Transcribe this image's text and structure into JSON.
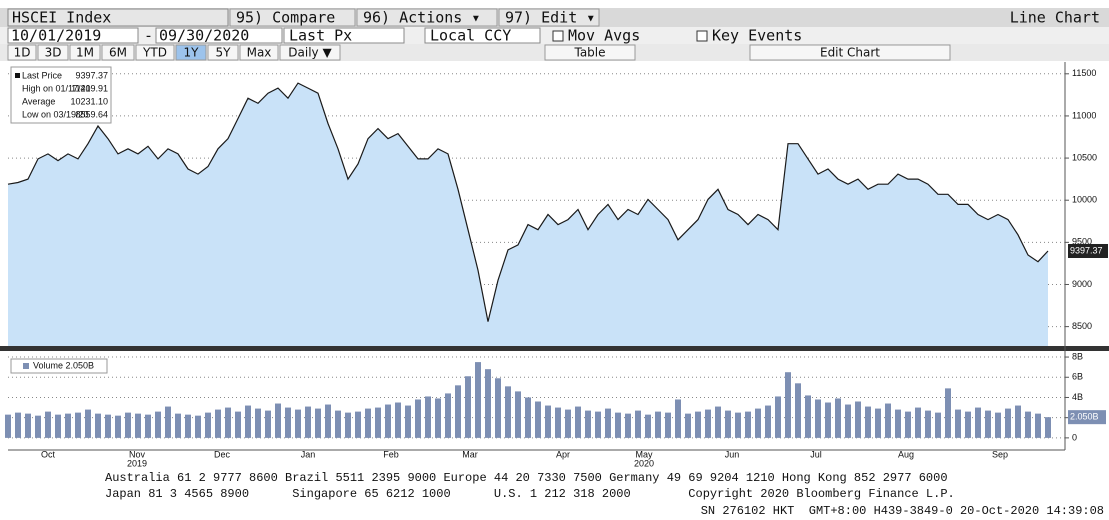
{
  "toolbar": {
    "row1": [
      "HSCEI Index",
      "95) Compare",
      "96) Actions ▾",
      "97) Edit ▾",
      "Line Chart"
    ],
    "row2": [
      "10/01/2019",
      "-",
      "09/30/2020",
      "Last Px",
      "Local CCY",
      "Mov Avgs",
      "Key Events"
    ],
    "row3": [
      "1D",
      "3D",
      "1M",
      "6M",
      "YTD",
      "1Y",
      "5Y",
      "Max",
      "Daily ▼",
      "Table",
      "Edit Chart"
    ]
  },
  "chart_data": [
    {
      "type": "area",
      "legend": [
        {
          "label": "Last Price",
          "value": "9397.37"
        },
        {
          "label": "High on 01/17/20",
          "value": "11419.91"
        },
        {
          "label": "Average",
          "value": "10231.10"
        },
        {
          "label": "Low on 03/19/20",
          "value": "8559.64"
        }
      ],
      "series": [
        {
          "name": "Last Price",
          "color": "#1a1a1a",
          "fill": "#c9e2f8",
          "values": [
            10190,
            10210,
            10250,
            10490,
            10550,
            10470,
            10550,
            10490,
            10670,
            10880,
            10730,
            10550,
            10610,
            10550,
            10640,
            10490,
            10610,
            10550,
            10370,
            10310,
            10400,
            10610,
            10730,
            10970,
            11210,
            11150,
            11270,
            11330,
            11210,
            11390,
            11330,
            11270,
            10910,
            10610,
            10250,
            10430,
            10730,
            10850,
            10730,
            10790,
            10640,
            10490,
            10490,
            10610,
            10550,
            10130,
            9650,
            9170,
            8560,
            9050,
            9410,
            9470,
            9710,
            9650,
            9830,
            9710,
            9770,
            9890,
            9650,
            9830,
            9950,
            9770,
            9890,
            9830,
            10010,
            9890,
            9770,
            9530,
            9650,
            9770,
            10010,
            10130,
            9890,
            9830,
            9710,
            9830,
            9770,
            9650,
            10670,
            10670,
            10490,
            10310,
            10370,
            10250,
            10190,
            10250,
            10130,
            10190,
            10190,
            10310,
            10250,
            10250,
            10190,
            10070,
            10070,
            9950,
            9950,
            9830,
            9770,
            9830,
            9770,
            9590,
            9350,
            9270,
            9397.37
          ]
        }
      ],
      "ylim": [
        8270,
        11640
      ],
      "yticks": [
        8500,
        9000,
        9500,
        10000,
        10500,
        11000,
        11500
      ],
      "grid": true
    },
    {
      "type": "bar",
      "legend_label": "Volume 2.050B",
      "last_label": "2.050B",
      "color": "#7d8fb3",
      "values": [
        2.3,
        2.5,
        2.4,
        2.2,
        2.6,
        2.3,
        2.4,
        2.5,
        2.8,
        2.4,
        2.3,
        2.2,
        2.5,
        2.4,
        2.3,
        2.6,
        3.1,
        2.4,
        2.3,
        2.2,
        2.5,
        2.8,
        3.0,
        2.6,
        3.2,
        2.9,
        2.7,
        3.4,
        3.0,
        2.8,
        3.1,
        2.9,
        3.3,
        2.7,
        2.5,
        2.6,
        2.9,
        3.0,
        3.3,
        3.5,
        3.2,
        3.8,
        4.1,
        3.9,
        4.4,
        5.2,
        6.1,
        7.5,
        6.8,
        5.9,
        5.1,
        4.6,
        4.0,
        3.6,
        3.2,
        3.0,
        2.8,
        3.1,
        2.7,
        2.6,
        2.9,
        2.5,
        2.4,
        2.7,
        2.3,
        2.6,
        2.5,
        3.8,
        2.4,
        2.6,
        2.8,
        3.1,
        2.7,
        2.5,
        2.6,
        2.9,
        3.2,
        4.1,
        6.5,
        5.4,
        4.2,
        3.8,
        3.5,
        3.9,
        3.3,
        3.6,
        3.1,
        2.9,
        3.4,
        2.8,
        2.6,
        3.0,
        2.7,
        2.5,
        4.9,
        2.8,
        2.6,
        3.0,
        2.7,
        2.5,
        2.9,
        3.2,
        2.6,
        2.4,
        2.05
      ],
      "ylim": [
        -1.2,
        8.5
      ],
      "yticks": [
        {
          "value": 0,
          "label": "0"
        },
        {
          "value": 2,
          "label": "2B"
        },
        {
          "value": 4,
          "label": "4B"
        },
        {
          "value": 6,
          "label": "6B"
        },
        {
          "value": 8,
          "label": "8B"
        }
      ],
      "grid": true,
      "xticks": [
        {
          "value": 4,
          "label": "Oct"
        },
        {
          "value": 12.9,
          "label": "Nov"
        },
        {
          "value": 21.4,
          "label": "Dec"
        },
        {
          "value": 30,
          "label": "Jan"
        },
        {
          "value": 38.3,
          "label": "Feb"
        },
        {
          "value": 46.2,
          "label": "Mar"
        },
        {
          "value": 55.5,
          "label": "Apr"
        },
        {
          "value": 63.6,
          "label": "May"
        },
        {
          "value": 72.4,
          "label": "Jun"
        },
        {
          "value": 80.8,
          "label": "Jul"
        },
        {
          "value": 89.8,
          "label": "Aug"
        },
        {
          "value": 99.2,
          "label": "Sep"
        }
      ],
      "year_labels": [
        {
          "value": 12.9,
          "label": "2019"
        },
        {
          "value": 63.6,
          "label": "2020"
        }
      ]
    }
  ],
  "footer": [
    "Australia 61 2 9777 8600 Brazil 5511 2395 9000 Europe 44 20 7330 7500 Germany 49 69 9204 1210 Hong Kong 852 2977 6000",
    "Japan 81 3 4565 8900      Singapore 65 6212 1000      U.S. 1 212 318 2000        Copyright 2020 Bloomberg Finance L.P.",
    "SN 276102 HKT  GMT+8:00 H439-3849-0 20-Oct-2020 14:39:08"
  ]
}
